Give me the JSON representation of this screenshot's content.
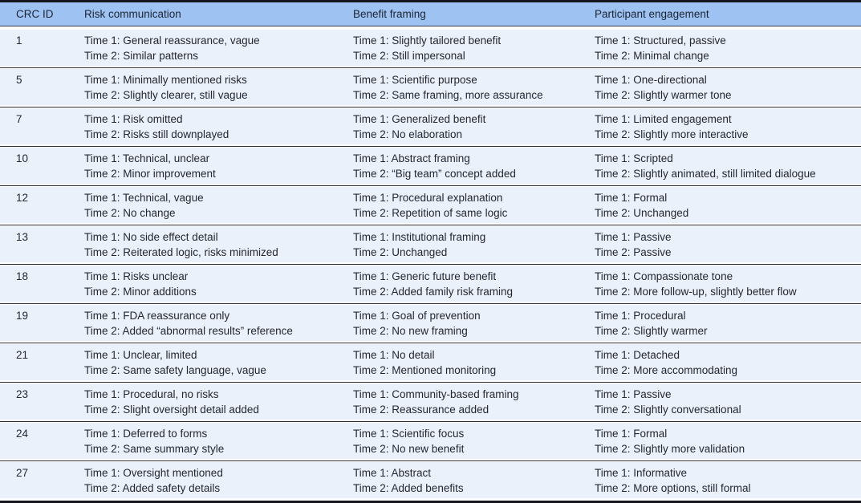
{
  "table": {
    "columns": [
      "CRC ID",
      "Risk communication",
      "Benefit framing",
      "Participant engagement"
    ],
    "rows": [
      {
        "id": "1",
        "risk": [
          "Time 1: General reassurance, vague",
          "Time 2: Similar patterns"
        ],
        "benefit": [
          "Time 1: Slightly tailored benefit",
          "Time 2: Still impersonal"
        ],
        "engagement": [
          "Time 1: Structured, passive",
          "Time 2: Minimal change"
        ]
      },
      {
        "id": "5",
        "risk": [
          "Time 1: Minimally mentioned risks",
          "Time 2: Slightly clearer, still vague"
        ],
        "benefit": [
          "Time 1: Scientific purpose",
          "Time 2: Same framing, more assurance"
        ],
        "engagement": [
          "Time 1: One-directional",
          "Time 2: Slightly warmer tone"
        ]
      },
      {
        "id": "7",
        "risk": [
          "Time 1: Risk omitted",
          "Time 2: Risks still downplayed"
        ],
        "benefit": [
          "Time 1: Generalized benefit",
          "Time 2: No elaboration"
        ],
        "engagement": [
          "Time 1: Limited engagement",
          "Time 2: Slightly more interactive"
        ]
      },
      {
        "id": "10",
        "risk": [
          "Time 1: Technical, unclear",
          "Time 2: Minor improvement"
        ],
        "benefit": [
          "Time 1: Abstract framing",
          "Time 2: “Big team” concept added"
        ],
        "engagement": [
          "Time 1: Scripted",
          "Time 2: Slightly animated, still limited dialogue"
        ]
      },
      {
        "id": "12",
        "risk": [
          "Time 1: Technical, vague",
          "Time 2: No change"
        ],
        "benefit": [
          "Time 1: Procedural explanation",
          "Time 2: Repetition of same logic"
        ],
        "engagement": [
          "Time 1: Formal",
          "Time 2: Unchanged"
        ]
      },
      {
        "id": "13",
        "risk": [
          "Time 1: No side effect detail",
          "Time 2: Reiterated logic, risks minimized"
        ],
        "benefit": [
          "Time 1: Institutional framing",
          "Time 2: Unchanged"
        ],
        "engagement": [
          "Time 1: Passive",
          "Time 2: Passive"
        ]
      },
      {
        "id": "18",
        "risk": [
          "Time 1: Risks unclear",
          "Time 2: Minor additions"
        ],
        "benefit": [
          "Time 1: Generic future benefit",
          "Time 2: Added family risk framing"
        ],
        "engagement": [
          "Time 1: Compassionate tone",
          "Time 2: More follow-up, slightly better flow"
        ]
      },
      {
        "id": "19",
        "risk": [
          "Time 1: FDA reassurance only",
          "Time 2: Added “abnormal results” reference"
        ],
        "benefit": [
          "Time 1: Goal of prevention",
          "Time 2: No new framing"
        ],
        "engagement": [
          "Time 1: Procedural",
          "Time 2: Slightly warmer"
        ]
      },
      {
        "id": "21",
        "risk": [
          "Time 1: Unclear, limited",
          "Time 2: Same safety language, vague"
        ],
        "benefit": [
          "Time 1: No detail",
          "Time 2: Mentioned monitoring"
        ],
        "engagement": [
          "Time 1: Detached",
          "Time 2: More accommodating"
        ]
      },
      {
        "id": "23",
        "risk": [
          "Time 1: Procedural, no risks",
          "Time 2: Slight oversight detail added"
        ],
        "benefit": [
          "Time 1: Community-based framing",
          "Time 2: Reassurance added"
        ],
        "engagement": [
          "Time 1: Passive",
          "Time 2: Slightly conversational"
        ]
      },
      {
        "id": "24",
        "risk": [
          "Time 1: Deferred to forms",
          "Time 2: Same summary style"
        ],
        "benefit": [
          "Time 1: Scientific focus",
          "Time 2: No new benefit"
        ],
        "engagement": [
          "Time 1: Formal",
          "Time 2: Slightly more validation"
        ]
      },
      {
        "id": "27",
        "risk": [
          "Time 1: Oversight mentioned",
          "Time 2: Added safety details"
        ],
        "benefit": [
          "Time 1: Abstract",
          "Time 2: Added benefits"
        ],
        "engagement": [
          "Time 1: Informative",
          "Time 2: More options, still formal"
        ]
      }
    ]
  },
  "colors": {
    "header_bg": "#9ec2f1",
    "row_bg": "#eaf1fb",
    "rule": "#2c2c3a",
    "frame_border": "#16161f",
    "text": "#25272d"
  }
}
